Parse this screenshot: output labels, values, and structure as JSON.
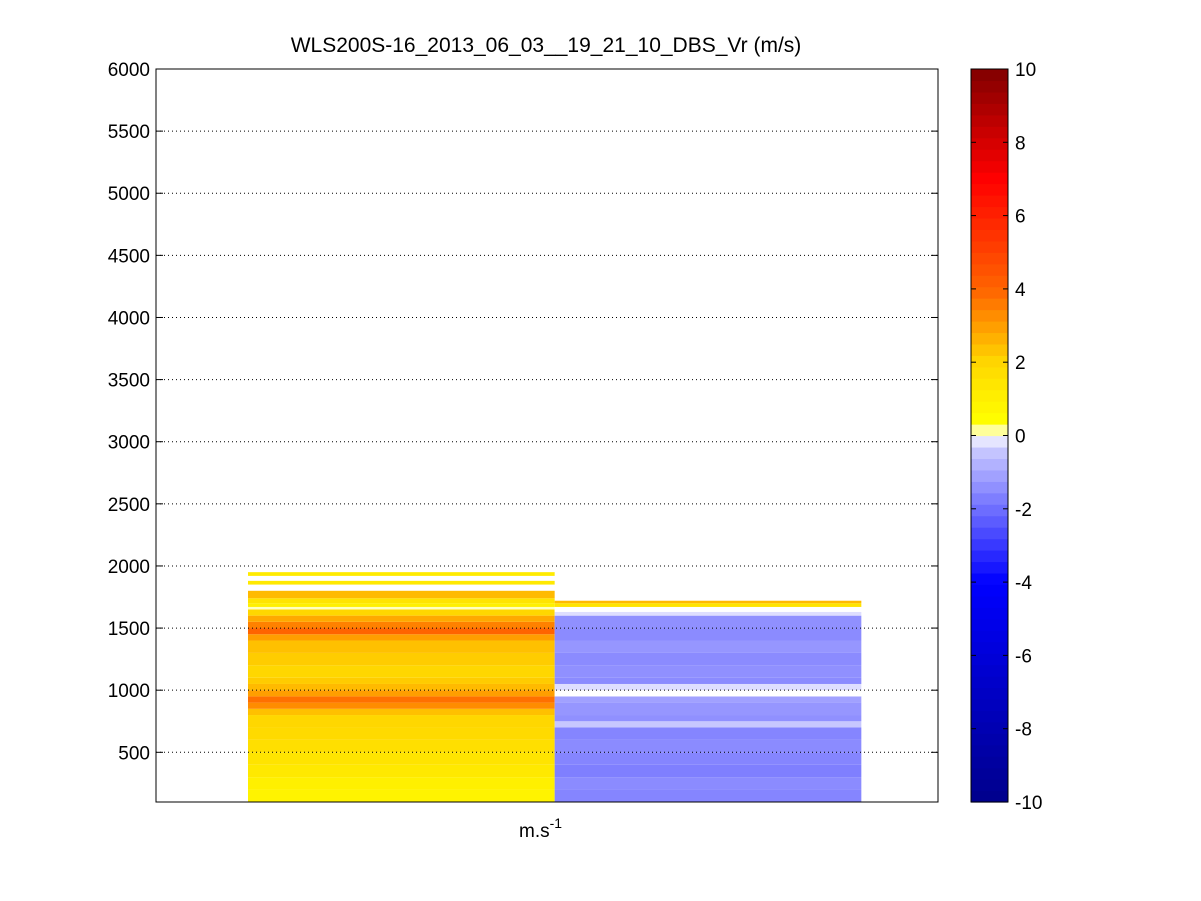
{
  "chart_data": {
    "type": "heatmap",
    "title": "WLS200S-16_2013_06_03__19_21_10_DBS_Vr (m/s)",
    "xlabel": "m.s",
    "xlabel_superscript": "-1",
    "ylabel": "",
    "ylim": [
      100,
      6000
    ],
    "yticks": [
      500,
      1000,
      1500,
      2000,
      2500,
      3000,
      3500,
      4000,
      4500,
      5000,
      5500,
      6000
    ],
    "grid": "horizontal dotted",
    "colorbar": {
      "range": [
        -10,
        10
      ],
      "ticks": [
        -10,
        -8,
        -6,
        -4,
        -2,
        0,
        2,
        4,
        6,
        8,
        10
      ]
    },
    "columns": [
      {
        "x_range": [
          0.5,
          1.5
        ],
        "cells": [
          [
            100,
            200,
            0.9
          ],
          [
            200,
            300,
            1.0
          ],
          [
            300,
            400,
            1.3
          ],
          [
            400,
            500,
            1.5
          ],
          [
            500,
            600,
            1.7
          ],
          [
            600,
            700,
            1.9
          ],
          [
            700,
            800,
            2.0
          ],
          [
            800,
            850,
            2.4
          ],
          [
            850,
            900,
            3.3
          ],
          [
            900,
            950,
            3.8
          ],
          [
            950,
            1000,
            3.0
          ],
          [
            1000,
            1050,
            2.5
          ],
          [
            1050,
            1100,
            2.2
          ],
          [
            1100,
            1200,
            2.0
          ],
          [
            1200,
            1300,
            2.2
          ],
          [
            1300,
            1400,
            2.4
          ],
          [
            1400,
            1450,
            3.0
          ],
          [
            1450,
            1500,
            4.0
          ],
          [
            1500,
            1550,
            3.5
          ],
          [
            1550,
            1600,
            2.8
          ],
          [
            1600,
            1650,
            2.0
          ],
          [
            1650,
            1670,
            0.1
          ],
          [
            1670,
            1700,
            1.0
          ],
          [
            1700,
            1740,
            1.5
          ],
          [
            1740,
            1800,
            2.5
          ],
          [
            1850,
            1880,
            1.3
          ],
          [
            1920,
            1950,
            1.2
          ]
        ]
      },
      {
        "x_range": [
          1.5,
          2.5
        ],
        "cells": [
          [
            100,
            200,
            -1.6
          ],
          [
            200,
            300,
            -1.5
          ],
          [
            300,
            400,
            -1.7
          ],
          [
            400,
            500,
            -1.6
          ],
          [
            500,
            600,
            -1.5
          ],
          [
            600,
            700,
            -1.6
          ],
          [
            700,
            750,
            -0.4
          ],
          [
            750,
            800,
            -1.4
          ],
          [
            800,
            900,
            -1.3
          ],
          [
            900,
            950,
            -1.1
          ],
          [
            950,
            1000,
            0.0
          ],
          [
            1000,
            1050,
            -0.2
          ],
          [
            1050,
            1100,
            -1.5
          ],
          [
            1100,
            1200,
            -1.4
          ],
          [
            1200,
            1300,
            -1.5
          ],
          [
            1300,
            1400,
            -1.3
          ],
          [
            1400,
            1500,
            -1.5
          ],
          [
            1500,
            1600,
            -1.4
          ],
          [
            1600,
            1630,
            -0.2
          ],
          [
            1630,
            1670,
            0.0
          ],
          [
            1670,
            1700,
            1.5
          ],
          [
            1700,
            1720,
            2.5
          ]
        ]
      }
    ]
  }
}
